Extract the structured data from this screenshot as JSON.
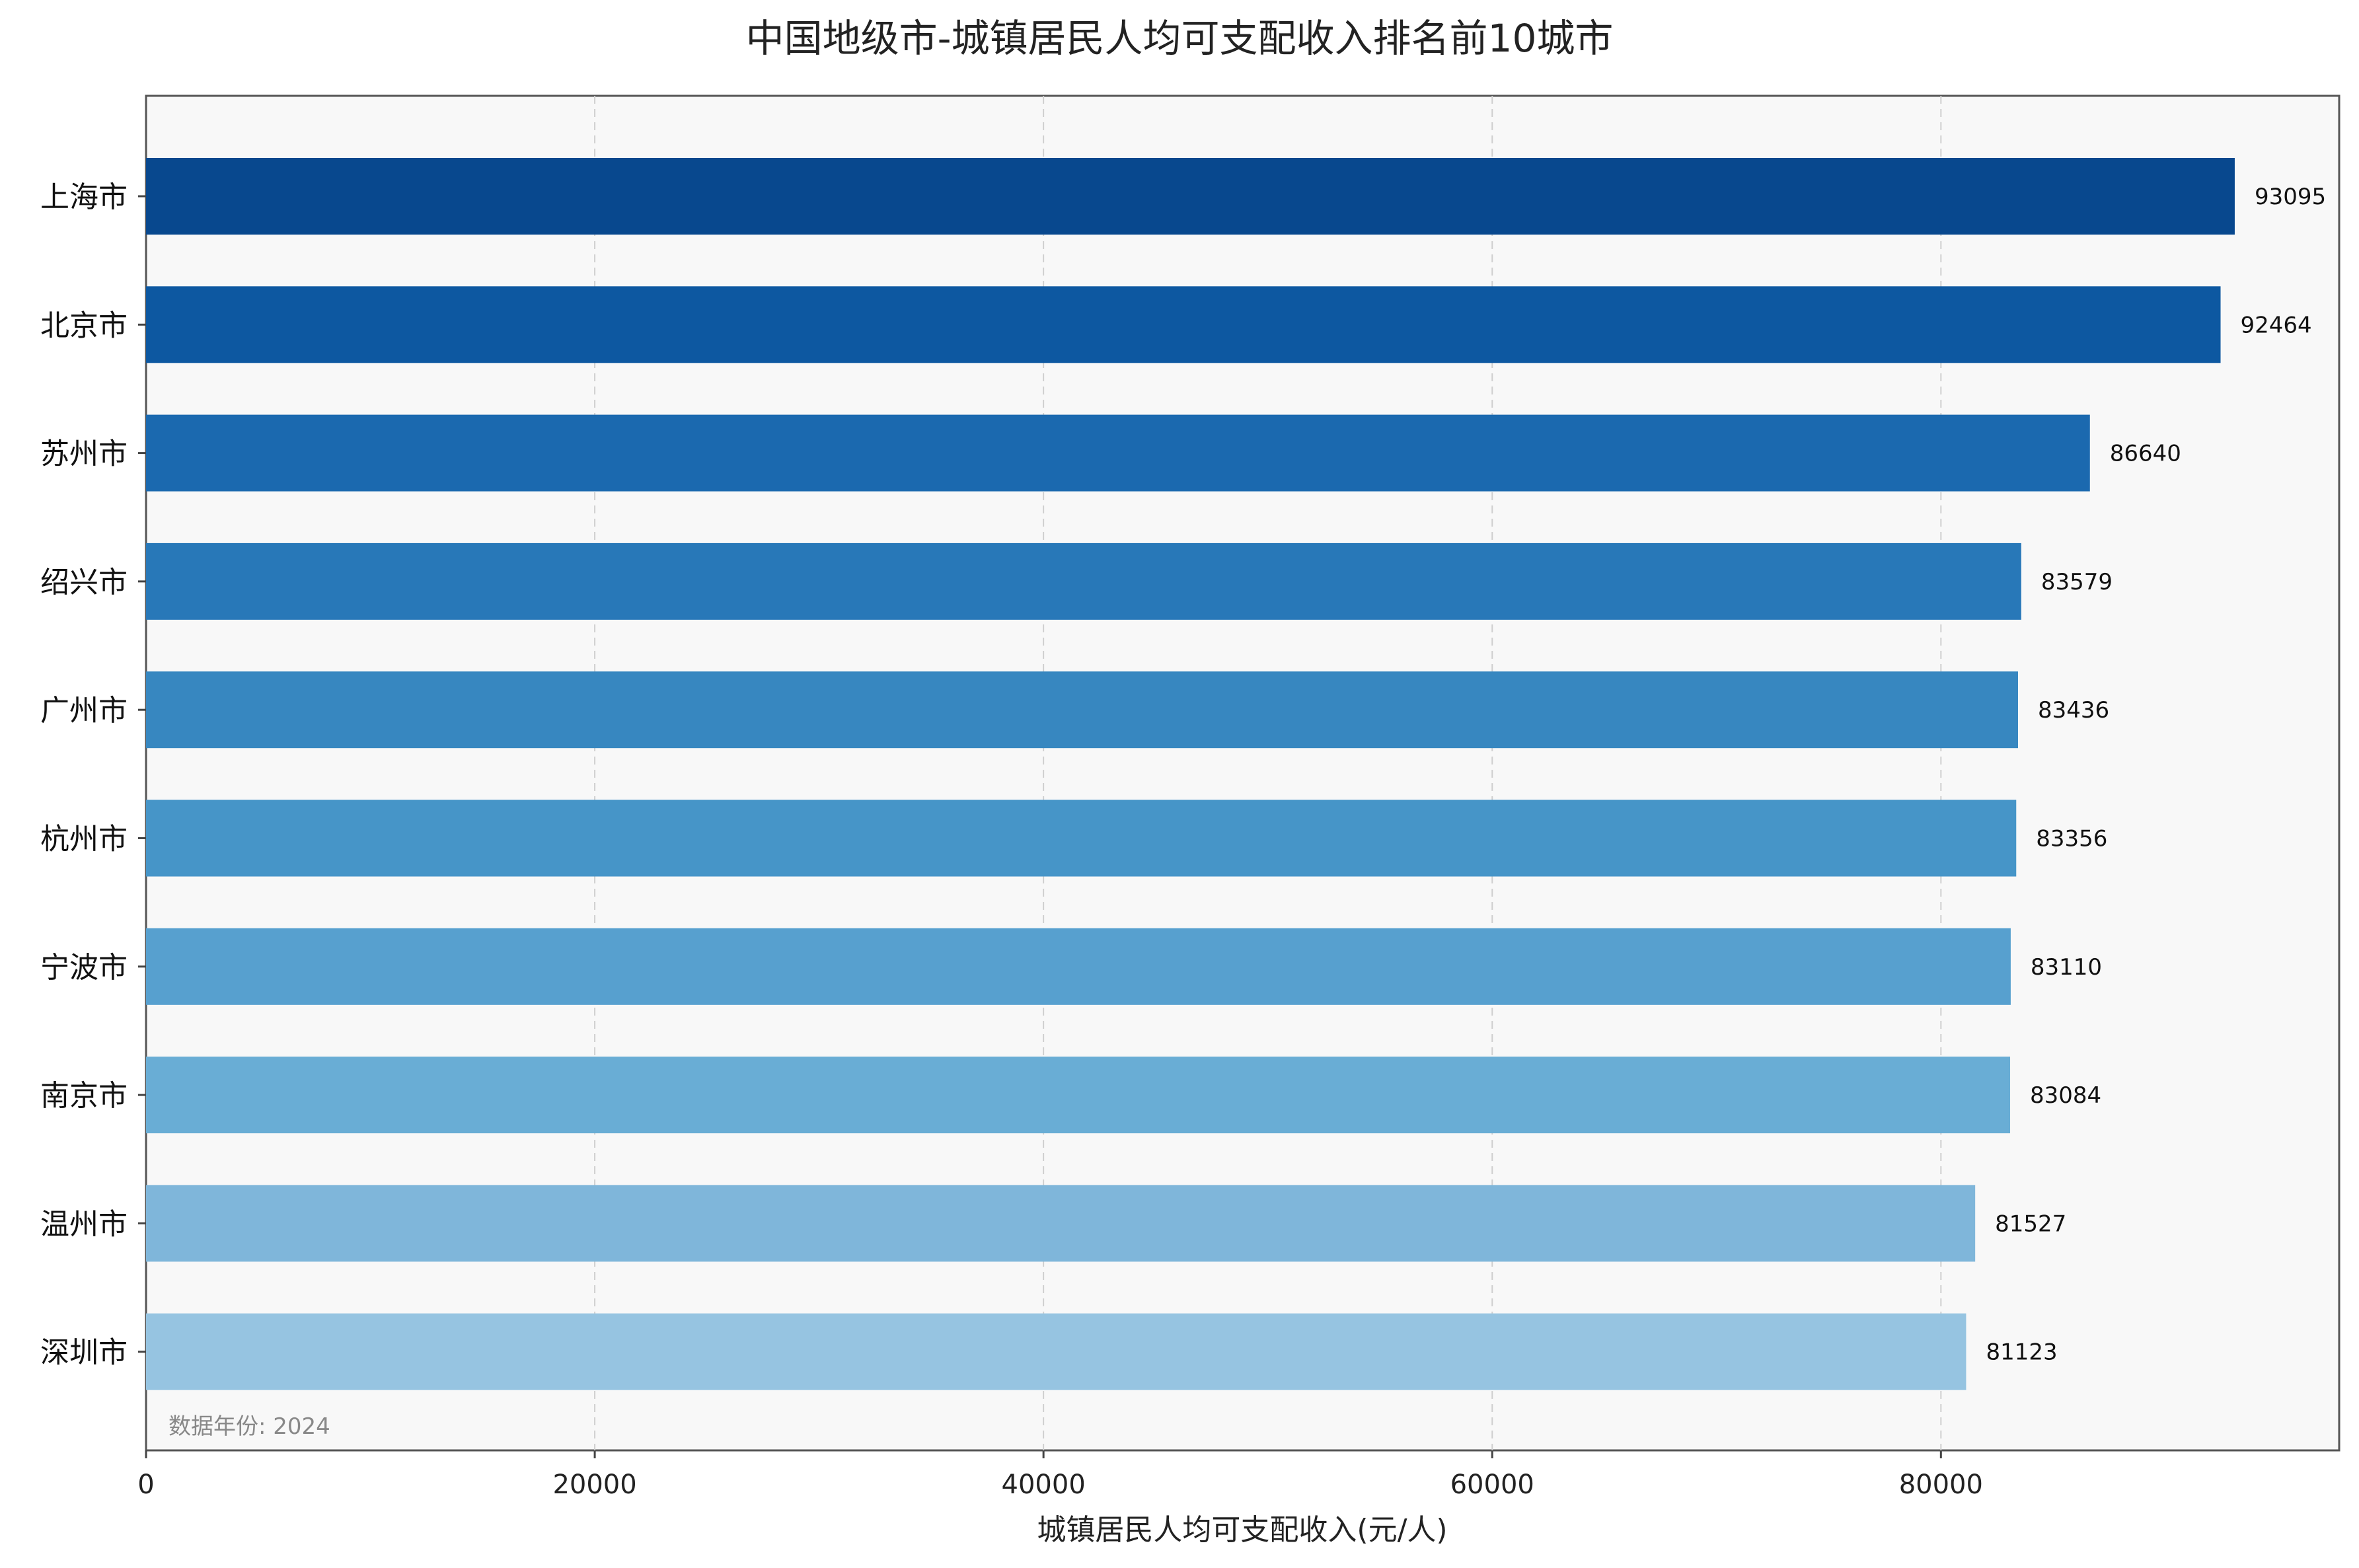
{
  "chart_data": {
    "type": "bar",
    "orientation": "horizontal",
    "title": "中国地级市-城镇居民人均可支配收入排名前10城市",
    "xlabel": "城镇居民人均可支配收入(元/人)",
    "ylabel": "",
    "xlim": [
      0,
      97750
    ],
    "xticks": [
      0,
      20000,
      40000,
      60000,
      80000
    ],
    "xtick_labels": [
      "0",
      "20000",
      "40000",
      "60000",
      "80000"
    ],
    "grid": "vertical dashed",
    "annotation": "数据年份: 2024",
    "categories": [
      "上海市",
      "北京市",
      "苏州市",
      "绍兴市",
      "广州市",
      "杭州市",
      "宁波市",
      "南京市",
      "温州市",
      "深圳市"
    ],
    "values": [
      93095,
      92464,
      86640,
      83579,
      83436,
      83356,
      83110,
      83084,
      81527,
      81123
    ],
    "value_labels": [
      "93095",
      "92464",
      "86640",
      "83579",
      "83436",
      "83356",
      "83110",
      "83084",
      "81527",
      "81123"
    ],
    "colors": [
      "#08488e",
      "#0d58a1",
      "#1b69af",
      "#2878b8",
      "#3787c0",
      "#4695c8",
      "#57a0cf",
      "#69add5",
      "#7fb6da",
      "#96c4e1"
    ]
  }
}
